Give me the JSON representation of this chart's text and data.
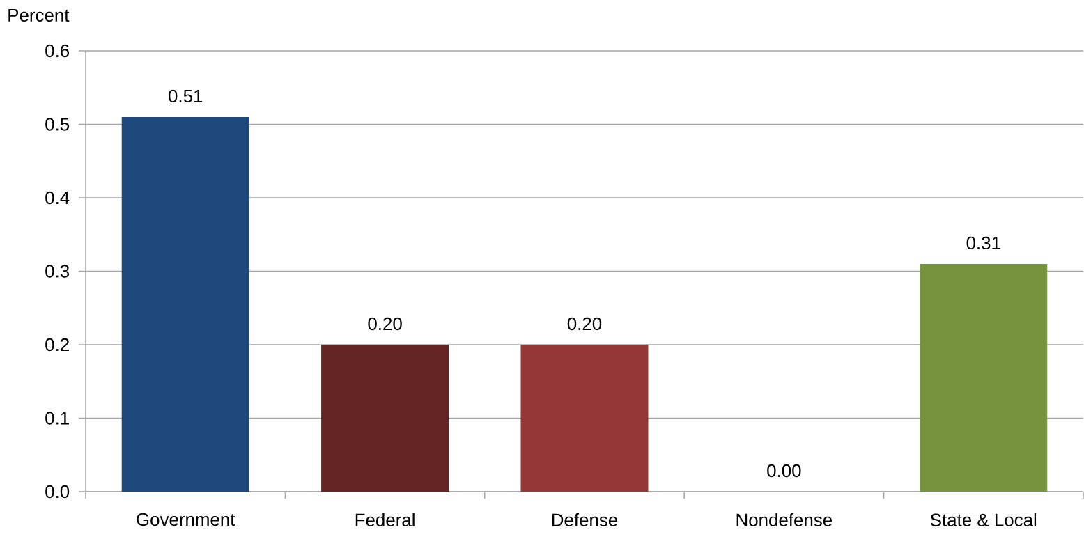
{
  "chart_data": {
    "type": "bar",
    "ylabel": "Percent",
    "categories": [
      "Government",
      "Federal",
      "Defense",
      "Nondefense",
      "State & Local"
    ],
    "values": [
      0.51,
      0.2,
      0.2,
      0.0,
      0.31
    ],
    "colors": [
      "#1f497d",
      "#632423",
      "#953735",
      "#4f81bd",
      "#77933c"
    ],
    "value_labels": [
      "0.51",
      "0.20",
      "0.20",
      "0.00",
      "0.31"
    ],
    "ylim": [
      0,
      0.6
    ],
    "yticks": [
      {
        "value": 0,
        "label": "0.0"
      },
      0.1,
      0.2,
      0.3,
      0.4,
      0.5,
      0.6
    ],
    "grid": "y"
  }
}
